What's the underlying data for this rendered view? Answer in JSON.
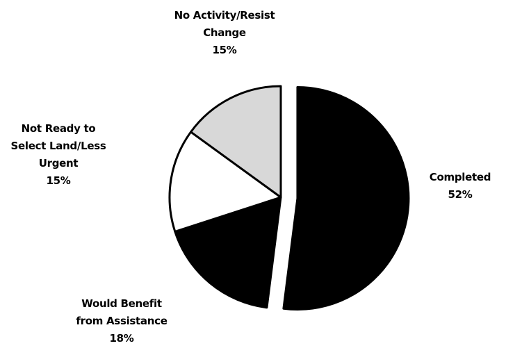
{
  "chart_data": {
    "type": "pie",
    "title": "",
    "slices": [
      {
        "label_lines": [
          "Completed"
        ],
        "percent_label": "52%",
        "value": 52,
        "color": "#000000"
      },
      {
        "label_lines": [
          "Would Benefit",
          "from Assistance"
        ],
        "percent_label": "18%",
        "value": 18,
        "color": "#000000"
      },
      {
        "label_lines": [
          "Not Ready to",
          "Select Land/Less",
          "Urgent"
        ],
        "percent_label": "15%",
        "value": 15,
        "color": "#ffffff"
      },
      {
        "label_lines": [
          "No Activity/Resist",
          "Change"
        ],
        "percent_label": "15%",
        "value": 15,
        "color": "#d8d8d8"
      }
    ],
    "legend": "none",
    "outline_color": "#000000"
  }
}
